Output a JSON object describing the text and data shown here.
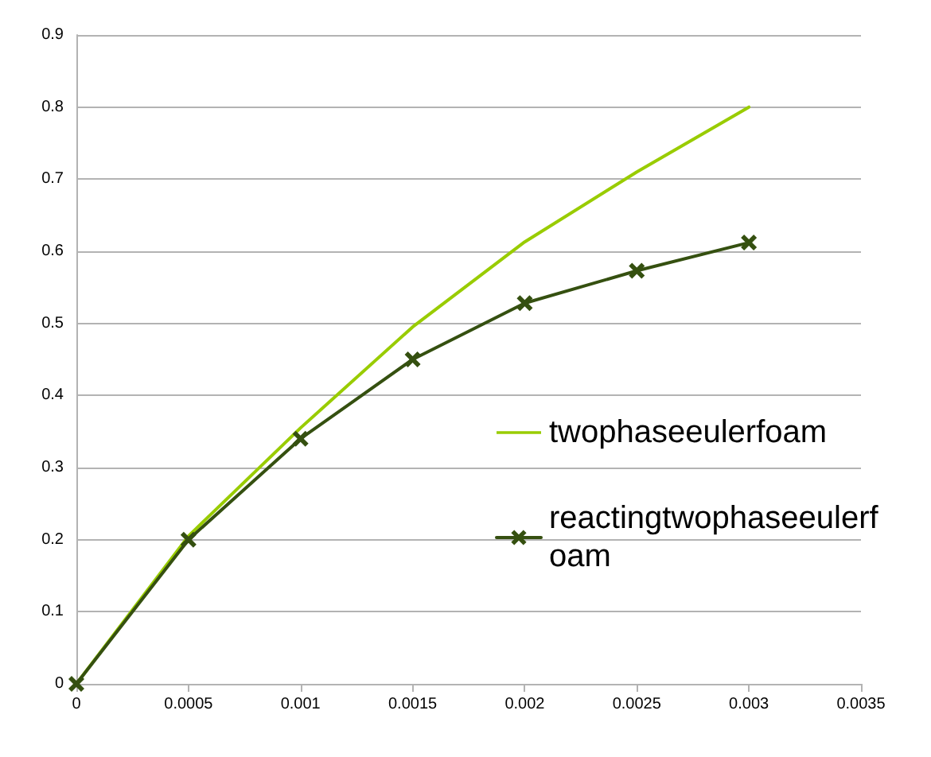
{
  "chart_data": {
    "type": "line",
    "x": [
      0,
      0.0005,
      0.001,
      0.0015,
      0.002,
      0.0025,
      0.003
    ],
    "series": [
      {
        "name": "twophaseeulerfoam",
        "color": "#99cc00",
        "marker": "none",
        "values": [
          0,
          0.205,
          0.355,
          0.495,
          0.613,
          0.71,
          0.8
        ]
      },
      {
        "name": "reactingtwophaseeulerfoam",
        "color": "#355010",
        "marker": "cross",
        "values": [
          0,
          0.2,
          0.34,
          0.45,
          0.528,
          0.573,
          0.612
        ]
      }
    ],
    "xlim": [
      0,
      0.0035
    ],
    "xticks": [
      0,
      0.0005,
      0.001,
      0.0015,
      0.002,
      0.0025,
      0.003,
      0.0035
    ],
    "ylim": [
      0,
      0.9
    ],
    "yticks": [
      0,
      0.1,
      0.2,
      0.3,
      0.4,
      0.5,
      0.6,
      0.7,
      0.8,
      0.9
    ],
    "grid": "y",
    "legend": "right",
    "line_style": "solid"
  }
}
